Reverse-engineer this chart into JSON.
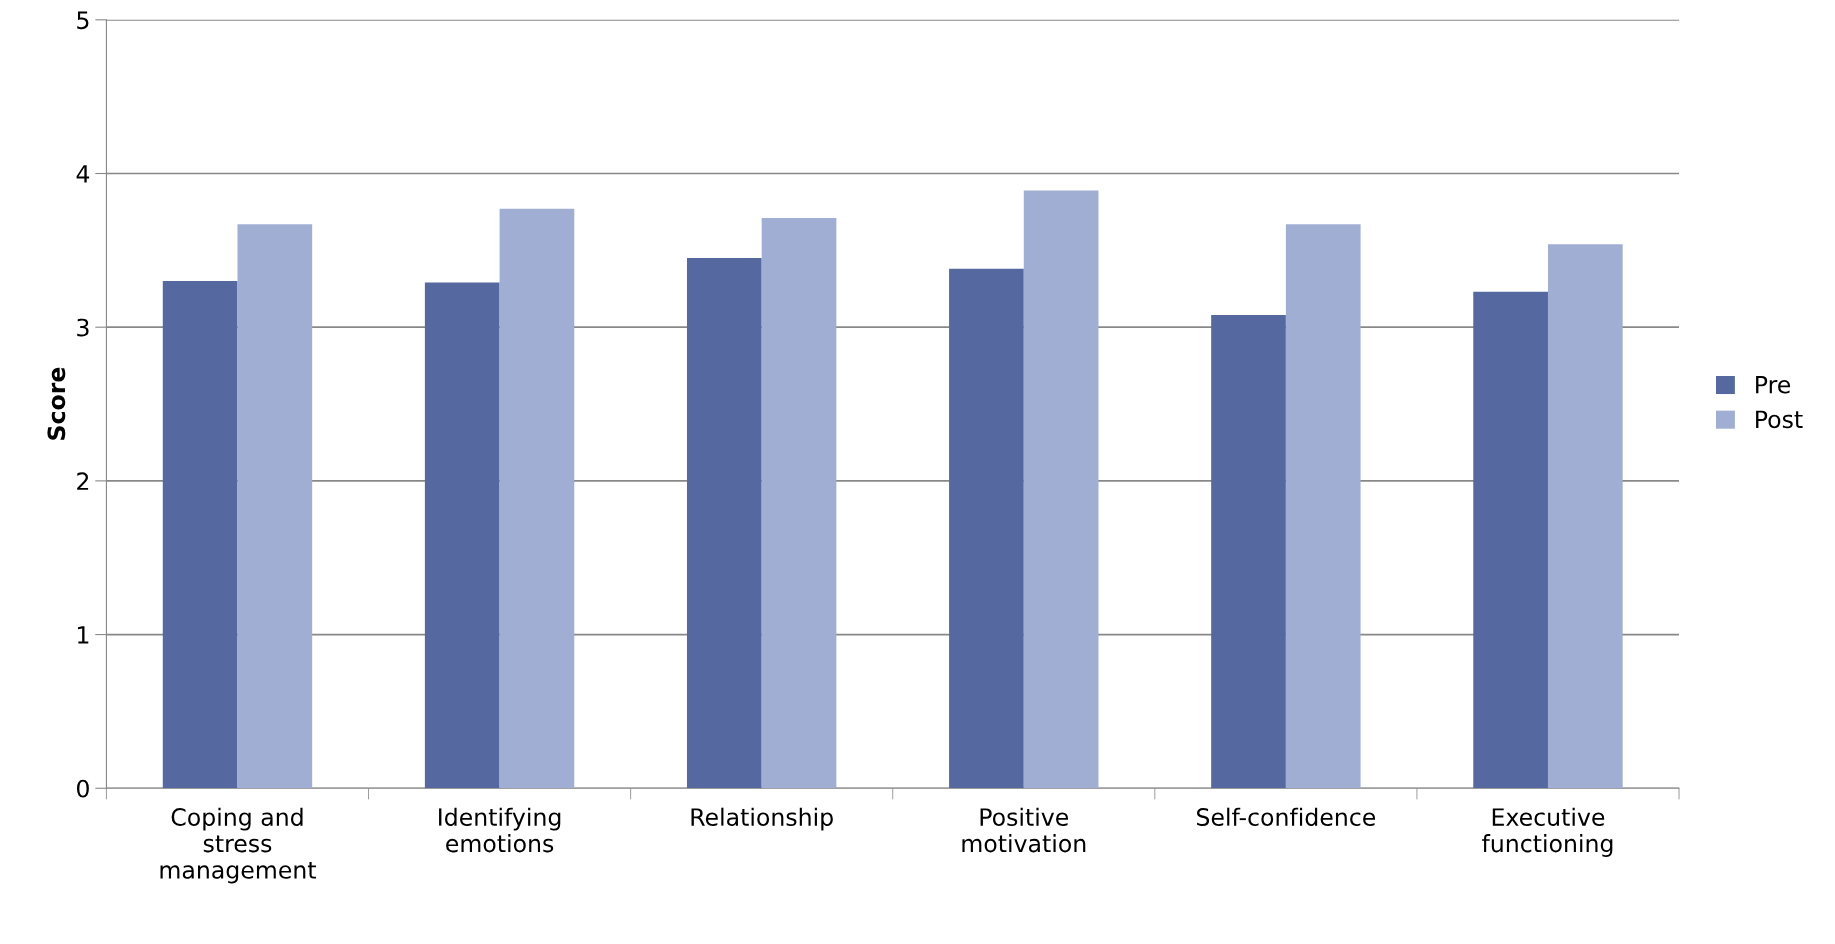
{
  "chart_data": {
    "type": "bar",
    "ylabel": "Score",
    "categories": [
      "Coping and\nstress\nmanagement",
      "Identifying\nemotions",
      "Relationship",
      "Positive\nmotivation",
      "Self-confidence",
      "Executive\nfunctioning"
    ],
    "series": [
      {
        "name": "Pre",
        "color": "#5568a0",
        "values": [
          3.3,
          3.29,
          3.45,
          3.38,
          3.08,
          3.23
        ]
      },
      {
        "name": "Post",
        "color": "#a0aed4",
        "values": [
          3.67,
          3.77,
          3.71,
          3.89,
          3.67,
          3.54
        ]
      }
    ],
    "ylim": [
      0,
      5
    ],
    "yticks": [
      0,
      1,
      2,
      3,
      4,
      5
    ],
    "grid": "y",
    "legend": "right"
  }
}
